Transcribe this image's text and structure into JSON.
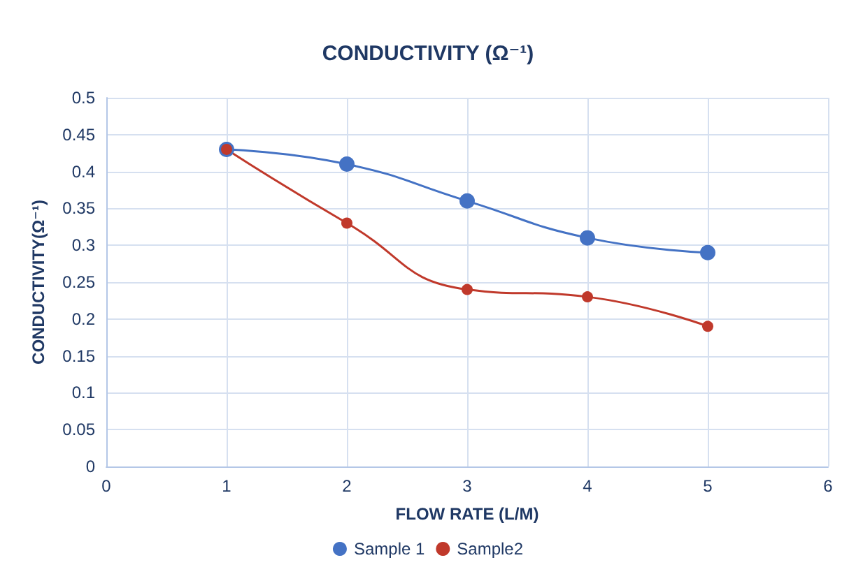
{
  "chart_data": {
    "type": "line",
    "title": "CONDUCTIVITY (Ω⁻¹)",
    "xlabel": "FLOW RATE (L/M)",
    "ylabel": "CONDUCTIVITY(Ω⁻¹)",
    "x": [
      1,
      2,
      3,
      4,
      5
    ],
    "series": [
      {
        "name": "Sample 1",
        "color": "#4472c4",
        "values": [
          0.43,
          0.41,
          0.36,
          0.31,
          0.29
        ]
      },
      {
        "name": "Sample2",
        "color": "#c0392b",
        "values": [
          0.43,
          0.33,
          0.24,
          0.23,
          0.19
        ]
      }
    ],
    "xlim": [
      0,
      6
    ],
    "xticks": [
      0,
      1,
      2,
      3,
      4,
      5,
      6
    ],
    "ylim": [
      0,
      0.5
    ],
    "yticks": [
      0,
      0.05,
      0.1,
      0.15,
      0.2,
      0.25,
      0.3,
      0.35,
      0.4,
      0.45,
      0.5
    ],
    "grid": true,
    "legend": "bottom",
    "marker": "circle",
    "line_style": "solid"
  }
}
